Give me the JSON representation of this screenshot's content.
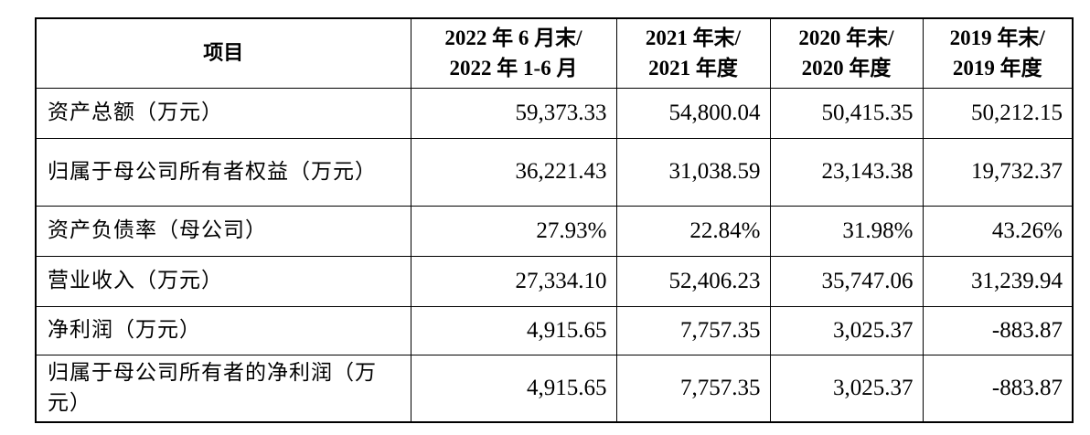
{
  "table": {
    "header": {
      "item": "项目",
      "columns": [
        {
          "line1": "2022 年 6 月末/",
          "line2": "2022 年 1-6 月"
        },
        {
          "line1": "2021 年末/",
          "line2": "2021 年度"
        },
        {
          "line1": "2020 年末/",
          "line2": "2020 年度"
        },
        {
          "line1": "2019 年末/",
          "line2": "2019 年度"
        }
      ]
    },
    "rows": [
      {
        "label": "资产总额（万元）",
        "values": [
          "59,373.33",
          "54,800.04",
          "50,415.35",
          "50,212.15"
        ]
      },
      {
        "label": "归属于母公司所有者权益（万元）",
        "values": [
          "36,221.43",
          "31,038.59",
          "23,143.38",
          "19,732.37"
        ]
      },
      {
        "label": "资产负债率（母公司）",
        "values": [
          "27.93%",
          "22.84%",
          "31.98%",
          "43.26%"
        ]
      },
      {
        "label": "营业收入（万元）",
        "values": [
          "27,334.10",
          "52,406.23",
          "35,747.06",
          "31,239.94"
        ]
      },
      {
        "label": "净利润（万元）",
        "values": [
          "4,915.65",
          "7,757.35",
          "3,025.37",
          "-883.87"
        ]
      },
      {
        "label": "归属于母公司所有者的净利润（万元）",
        "values": [
          "4,915.65",
          "7,757.35",
          "3,025.37",
          "-883.87"
        ]
      }
    ]
  }
}
